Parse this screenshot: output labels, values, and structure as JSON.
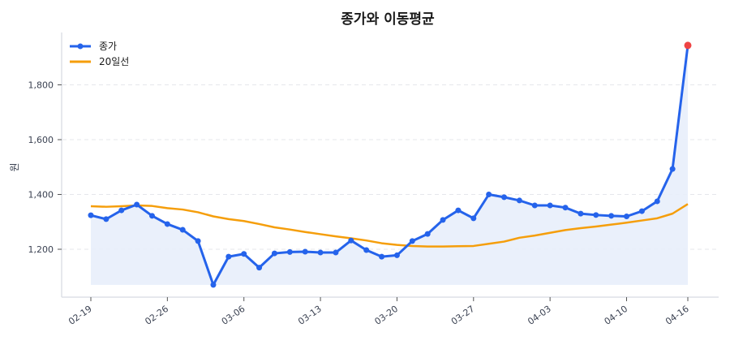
{
  "chart_data": {
    "type": "line",
    "title": "종가와 이동평균",
    "xlabel": "",
    "ylabel": "원",
    "ylim": [
      1040,
      1980
    ],
    "yticks": [
      1200,
      1400,
      1600,
      1800
    ],
    "ytick_labels": [
      "1,200",
      "1,400",
      "1,600",
      "1,800"
    ],
    "xtick_labels": [
      "02-19",
      "02-26",
      "03-06",
      "03-13",
      "03-20",
      "03-27",
      "04-03",
      "04-10",
      "04-16"
    ],
    "xtick_indices": [
      0,
      5,
      10,
      15,
      20,
      25,
      30,
      35,
      39
    ],
    "grid": "horizontal dashed",
    "legend_position": "upper left",
    "series": [
      {
        "name": "종가",
        "color": "#2563eb",
        "marker": "circle",
        "fill": "#e8eefb",
        "values": [
          1324,
          1310,
          1342,
          1363,
          1322,
          1292,
          1271,
          1230,
          1070,
          1173,
          1183,
          1133,
          1185,
          1190,
          1191,
          1188,
          1188,
          1232,
          1197,
          1173,
          1178,
          1230,
          1256,
          1307,
          1342,
          1313,
          1400,
          1390,
          1378,
          1360,
          1360,
          1352,
          1330,
          1325,
          1322,
          1320,
          1339,
          1375,
          1493,
          1944
        ],
        "highlight_last": {
          "color": "#ef4444",
          "value": 1944
        }
      },
      {
        "name": "20일선",
        "color": "#f59e0b",
        "marker": "none",
        "values": [
          1357,
          1355,
          1357,
          1360,
          1358,
          1350,
          1345,
          1335,
          1320,
          1310,
          1303,
          1292,
          1280,
          1272,
          1263,
          1255,
          1247,
          1240,
          1232,
          1222,
          1216,
          1212,
          1210,
          1210,
          1211,
          1212,
          1220,
          1228,
          1242,
          1250,
          1260,
          1270,
          1277,
          1283,
          1290,
          1297,
          1305,
          1313,
          1330,
          1365
        ]
      }
    ]
  },
  "legend": {
    "items": [
      {
        "label": "종가"
      },
      {
        "label": "20일선"
      }
    ]
  }
}
